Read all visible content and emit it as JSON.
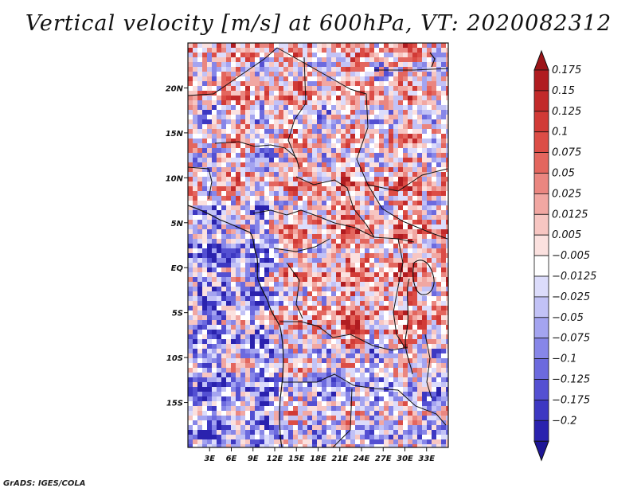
{
  "title": "Vertical velocity [m/s] at 600hPa, VT: 2020082312",
  "credit": "GrADS: IGES/COLA",
  "map": {
    "lon_range": [
      0,
      36
    ],
    "lat_range": [
      -20,
      25
    ],
    "lat_ticks": [
      {
        "value": 20,
        "label": "20N"
      },
      {
        "value": 15,
        "label": "15N"
      },
      {
        "value": 10,
        "label": "10N"
      },
      {
        "value": 5,
        "label": "5N"
      },
      {
        "value": 0,
        "label": "EQ"
      },
      {
        "value": -5,
        "label": "5S"
      },
      {
        "value": -10,
        "label": "10S"
      },
      {
        "value": -15,
        "label": "15S"
      }
    ],
    "lon_ticks": [
      {
        "value": 3,
        "label": "3E"
      },
      {
        "value": 6,
        "label": "6E"
      },
      {
        "value": 9,
        "label": "9E"
      },
      {
        "value": 12,
        "label": "12E"
      },
      {
        "value": 15,
        "label": "15E"
      },
      {
        "value": 18,
        "label": "18E"
      },
      {
        "value": 21,
        "label": "21E"
      },
      {
        "value": 24,
        "label": "24E"
      },
      {
        "value": 27,
        "label": "27E"
      },
      {
        "value": 30,
        "label": "30E"
      },
      {
        "value": 33,
        "label": "33E"
      }
    ]
  },
  "colorbar": {
    "levels": [
      {
        "label": "0.175",
        "color": "#b01c20"
      },
      {
        "label": "0.15",
        "color": "#c22a2a"
      },
      {
        "label": "0.125",
        "color": "#d13a36"
      },
      {
        "label": "0.1",
        "color": "#dc4d46"
      },
      {
        "label": "0.075",
        "color": "#e3665e"
      },
      {
        "label": "0.05",
        "color": "#ea8680"
      },
      {
        "label": "0.025",
        "color": "#f1a7a2"
      },
      {
        "label": "0.0125",
        "color": "#f7c6c2"
      },
      {
        "label": "0.005",
        "color": "#fbe1df"
      },
      {
        "label": "−0.005",
        "color": "#ffffff"
      },
      {
        "label": "−0.0125",
        "color": "#dcdcfb"
      },
      {
        "label": "−0.025",
        "color": "#c2c2f6"
      },
      {
        "label": "−0.05",
        "color": "#a4a4f0"
      },
      {
        "label": "−0.075",
        "color": "#8786e8"
      },
      {
        "label": "−0.1",
        "color": "#6c6ade"
      },
      {
        "label": "−0.125",
        "color": "#5450d2"
      },
      {
        "label": "−0.175",
        "color": "#3d38c2"
      },
      {
        "label": "−0.2",
        "color": "#2a22ae"
      }
    ],
    "top_arrow_color": "#9c1418",
    "bottom_arrow_color": "#1e1696"
  }
}
